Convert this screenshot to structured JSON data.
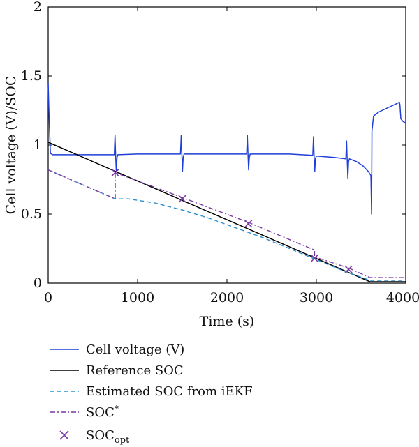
{
  "chart_data": {
    "type": "line",
    "xlabel": "Time (s)",
    "ylabel": "Cell voltage (V)/SOC",
    "xlim": [
      0,
      4000
    ],
    "ylim": [
      0,
      2
    ],
    "x_ticks": [
      "0",
      "1000",
      "2000",
      "3000",
      "4000"
    ],
    "y_ticks": [
      "0",
      "0.5",
      "1",
      "1.5",
      "2"
    ],
    "grid": false,
    "legend_position": "below",
    "series": [
      {
        "name": "Cell voltage (V)",
        "color": "#1f3fd6",
        "style": "solid",
        "x": [
          0,
          10,
          25,
          50,
          200,
          500,
          740,
          748,
          755,
          762,
          770,
          780,
          1000,
          1480,
          1488,
          1495,
          1502,
          1510,
          1520,
          2000,
          2220,
          2228,
          2235,
          2242,
          2250,
          2260,
          2700,
          2960,
          2968,
          2975,
          2982,
          2990,
          3000,
          3200,
          3330,
          3338,
          3345,
          3352,
          3360,
          3370,
          3450,
          3520,
          3580,
          3610,
          3618,
          3622,
          3640,
          3700,
          3800,
          3900,
          3930,
          3935,
          3945,
          3970,
          4000
        ],
        "y": [
          1.45,
          1.2,
          0.94,
          0.93,
          0.93,
          0.93,
          0.93,
          1.07,
          0.93,
          0.81,
          0.91,
          0.93,
          0.935,
          0.935,
          1.07,
          0.935,
          0.81,
          0.91,
          0.935,
          0.935,
          0.935,
          1.07,
          0.935,
          0.82,
          0.91,
          0.935,
          0.935,
          0.925,
          1.06,
          0.92,
          0.81,
          0.9,
          0.92,
          0.91,
          0.9,
          1.03,
          0.89,
          0.76,
          0.88,
          0.9,
          0.88,
          0.85,
          0.81,
          0.78,
          0.5,
          1.1,
          1.21,
          1.24,
          1.27,
          1.3,
          1.31,
          1.29,
          1.19,
          1.17,
          1.16
        ]
      },
      {
        "name": "Reference SOC",
        "color": "#000000",
        "style": "solid",
        "x": [
          0,
          3600,
          4000
        ],
        "y": [
          1.02,
          0.01,
          0.01
        ]
      },
      {
        "name": "Estimated SOC from iEKF",
        "color": "#2a8fcf",
        "style": "dashed",
        "x": [
          0,
          750,
          900,
          1200,
          1500,
          1800,
          2100,
          2400,
          2700,
          3000,
          3300,
          3600,
          4000
        ],
        "y": [
          0.82,
          0.61,
          0.61,
          0.58,
          0.53,
          0.47,
          0.4,
          0.33,
          0.25,
          0.17,
          0.09,
          0.02,
          0.02
        ]
      },
      {
        "name": "SOC*",
        "color": "#7a3aa3",
        "style": "dashdot",
        "x": [
          0,
          750,
          750,
          1500,
          2240,
          2980,
          2980,
          3360,
          3600,
          4000
        ],
        "y": [
          0.82,
          0.61,
          0.8,
          0.62,
          0.44,
          0.24,
          0.19,
          0.11,
          0.04,
          0.04
        ]
      }
    ],
    "markers": {
      "name": "SOC",
      "name_subscript": "opt",
      "color": "#7a3aa3",
      "symbol": "x",
      "x": [
        750,
        1500,
        2240,
        2980,
        3360
      ],
      "y": [
        0.8,
        0.61,
        0.43,
        0.18,
        0.1
      ]
    },
    "legend": [
      {
        "label": "Cell voltage (V)"
      },
      {
        "label": "Reference SOC"
      },
      {
        "label": "Estimated SOC from iEKF"
      },
      {
        "label": "SOC",
        "superscript": "*"
      },
      {
        "label": "SOC",
        "subscript": "opt"
      }
    ]
  }
}
